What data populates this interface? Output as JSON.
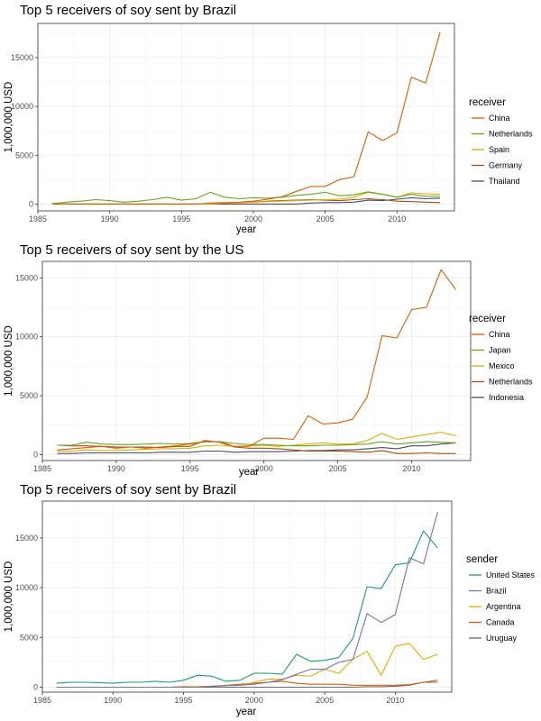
{
  "chart_data": [
    {
      "type": "line",
      "title": "Top 5 receivers of soy sent by Brazil",
      "xlabel": "year",
      "ylabel": "1,000,000 USD",
      "legend_title": "receiver",
      "legend_position": "right",
      "grid": true,
      "xlim": [
        1985,
        2014
      ],
      "ylim": [
        -700,
        18500
      ],
      "xticks": [
        1985,
        1990,
        1995,
        2000,
        2005,
        2010
      ],
      "yticks": [
        0,
        5000,
        10000,
        15000
      ],
      "x": [
        1986,
        1987,
        1988,
        1989,
        1990,
        1991,
        1992,
        1993,
        1994,
        1995,
        1996,
        1997,
        1998,
        1999,
        2000,
        2001,
        2002,
        2003,
        2004,
        2005,
        2006,
        2007,
        2008,
        2009,
        2010,
        2011,
        2012,
        2013
      ],
      "series": [
        {
          "name": "China",
          "color": "#D95F02",
          "values": [
            0,
            0,
            0,
            0,
            0,
            0,
            0,
            0,
            0,
            0,
            0,
            100,
            150,
            200,
            300,
            500,
            750,
            1300,
            1800,
            1800,
            2500,
            2800,
            7400,
            6500,
            7300,
            13000,
            12400,
            17600
          ]
        },
        {
          "name": "Netherlands",
          "color": "#66A61E",
          "values": [
            50,
            200,
            300,
            450,
            350,
            200,
            300,
            450,
            700,
            400,
            550,
            1200,
            700,
            550,
            650,
            600,
            700,
            900,
            1000,
            1200,
            850,
            950,
            1250,
            1000,
            700,
            1000,
            800,
            800
          ]
        },
        {
          "name": "Spain",
          "color": "#E6AB02",
          "values": [
            0,
            0,
            0,
            0,
            0,
            0,
            0,
            0,
            0,
            0,
            0,
            0,
            100,
            150,
            200,
            250,
            300,
            350,
            400,
            450,
            500,
            700,
            1200,
            1000,
            700,
            1150,
            1050,
            1000
          ]
        },
        {
          "name": "Germany",
          "color": "#A6500F",
          "values": [
            0,
            0,
            0,
            0,
            0,
            0,
            0,
            0,
            0,
            0,
            0,
            50,
            100,
            150,
            200,
            300,
            350,
            400,
            450,
            400,
            350,
            450,
            550,
            450,
            300,
            250,
            200,
            150
          ]
        },
        {
          "name": "Thailand",
          "color": "#4A4A6A",
          "values": [
            0,
            0,
            0,
            0,
            0,
            0,
            0,
            0,
            0,
            0,
            0,
            0,
            0,
            0,
            0,
            0,
            0,
            0,
            100,
            150,
            150,
            200,
            400,
            350,
            500,
            650,
            550,
            600
          ]
        }
      ]
    },
    {
      "type": "line",
      "title": "Top 5 receivers of soy sent by the US",
      "xlabel": "year",
      "ylabel": "1,000,000 USD",
      "legend_title": "receiver",
      "legend_position": "right",
      "grid": true,
      "xlim": [
        1985,
        2014
      ],
      "ylim": [
        -500,
        16400
      ],
      "xticks": [
        1985,
        1990,
        1995,
        2000,
        2005,
        2010
      ],
      "yticks": [
        0,
        5000,
        10000,
        15000
      ],
      "x": [
        1986,
        1987,
        1988,
        1989,
        1990,
        1991,
        1992,
        1993,
        1994,
        1995,
        1996,
        1997,
        1998,
        1999,
        2000,
        2001,
        2002,
        2003,
        2004,
        2005,
        2006,
        2007,
        2008,
        2009,
        2010,
        2011,
        2012,
        2013
      ],
      "series": [
        {
          "name": "China",
          "color": "#D95F02",
          "values": [
            400,
            500,
            600,
            700,
            550,
            650,
            550,
            650,
            750,
            900,
            1100,
            1100,
            700,
            700,
            1400,
            1400,
            1300,
            3300,
            2600,
            2700,
            3000,
            4900,
            10100,
            9900,
            12300,
            12500,
            15700,
            14000
          ]
        },
        {
          "name": "Japan",
          "color": "#66A61E",
          "values": [
            800,
            800,
            1050,
            900,
            850,
            850,
            900,
            950,
            900,
            950,
            1100,
            1100,
            950,
            850,
            850,
            800,
            750,
            750,
            800,
            800,
            850,
            900,
            1100,
            900,
            1000,
            1100,
            1050,
            1000
          ]
        },
        {
          "name": "Mexico",
          "color": "#E6AB02",
          "values": [
            300,
            300,
            400,
            350,
            350,
            400,
            450,
            500,
            500,
            550,
            750,
            800,
            700,
            750,
            800,
            700,
            800,
            900,
            1000,
            900,
            900,
            1200,
            1800,
            1300,
            1500,
            1700,
            1900,
            1600
          ]
        },
        {
          "name": "Netherlands",
          "color": "#A6500F",
          "values": [
            800,
            750,
            750,
            700,
            650,
            650,
            650,
            600,
            700,
            700,
            1200,
            1050,
            650,
            550,
            550,
            500,
            400,
            300,
            300,
            300,
            250,
            200,
            350,
            100,
            100,
            150,
            100,
            100
          ]
        },
        {
          "name": "Indonesia",
          "color": "#4A4A6A",
          "values": [
            100,
            100,
            150,
            150,
            150,
            150,
            150,
            200,
            200,
            200,
            300,
            300,
            200,
            250,
            250,
            250,
            300,
            350,
            350,
            400,
            400,
            500,
            600,
            500,
            750,
            750,
            900,
            1000
          ]
        }
      ]
    },
    {
      "type": "line",
      "title": "Top 5 receivers of soy sent by Brazil",
      "xlabel": "year",
      "ylabel": "1,000,000 USD",
      "legend_title": "sender",
      "legend_position": "right",
      "grid": true,
      "xlim": [
        1985,
        2014
      ],
      "ylim": [
        -500,
        18700
      ],
      "xticks": [
        1985,
        1990,
        1995,
        2000,
        2005,
        2010
      ],
      "yticks": [
        0,
        5000,
        10000,
        15000
      ],
      "x": [
        1986,
        1987,
        1988,
        1989,
        1990,
        1991,
        1992,
        1993,
        1994,
        1995,
        1996,
        1997,
        1998,
        1999,
        2000,
        2001,
        2002,
        2003,
        2004,
        2005,
        2006,
        2007,
        2008,
        2009,
        2010,
        2011,
        2012,
        2013
      ],
      "series": [
        {
          "name": "United States",
          "color": "#1B9E77",
          "values": [
            400,
            500,
            500,
            450,
            400,
            500,
            500,
            600,
            500,
            700,
            1200,
            1100,
            600,
            700,
            1400,
            1400,
            1300,
            3300,
            2600,
            2700,
            3000,
            4900,
            10100,
            9900,
            12300,
            12500,
            15700,
            14000
          ]
        },
        {
          "name": "Brazil",
          "color": "#7570B3",
          "values": [
            0,
            0,
            0,
            0,
            0,
            0,
            0,
            0,
            0,
            0,
            0,
            100,
            150,
            200,
            300,
            500,
            750,
            1300,
            1800,
            1800,
            2500,
            2800,
            7400,
            6500,
            7300,
            13000,
            12400,
            17600
          ]
        },
        {
          "name": "Argentina",
          "color": "#E6AB02",
          "values": [
            0,
            0,
            0,
            0,
            0,
            0,
            0,
            0,
            0,
            0,
            50,
            100,
            200,
            200,
            500,
            800,
            800,
            1200,
            1100,
            1800,
            1400,
            2800,
            3600,
            1200,
            4100,
            4400,
            2800,
            3300
          ]
        },
        {
          "name": "Canada",
          "color": "#D95F02",
          "values": [
            0,
            0,
            0,
            0,
            0,
            0,
            0,
            0,
            0,
            50,
            50,
            100,
            200,
            300,
            400,
            500,
            600,
            400,
            300,
            300,
            300,
            200,
            200,
            200,
            200,
            250,
            500,
            700
          ]
        },
        {
          "name": "Uruguay",
          "color": "#6B6B6B",
          "values": [
            0,
            0,
            0,
            0,
            0,
            0,
            0,
            0,
            0,
            0,
            0,
            0,
            0,
            0,
            0,
            0,
            0,
            0,
            0,
            0,
            0,
            0,
            50,
            50,
            100,
            200,
            500,
            500
          ]
        }
      ]
    }
  ]
}
